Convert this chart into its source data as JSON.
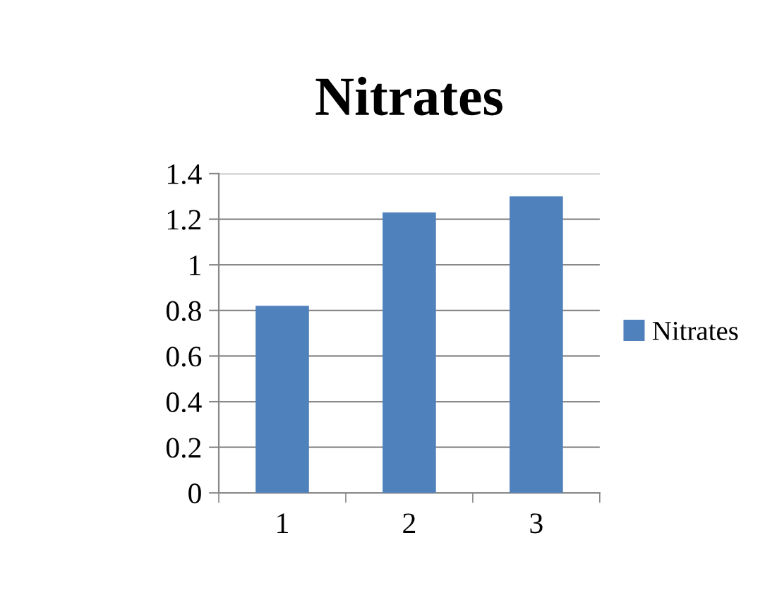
{
  "chart_data": {
    "type": "bar",
    "title": "Nitrates",
    "categories": [
      "1",
      "2",
      "3"
    ],
    "series": [
      {
        "name": "Nitrates",
        "color": "#4f81bd",
        "values": [
          0.82,
          1.23,
          1.3
        ]
      }
    ],
    "ylim": [
      0,
      1.4
    ],
    "yticks": [
      {
        "value": 0,
        "label": "0"
      },
      0.2,
      0.4,
      0.6,
      0.8,
      {
        "value": 1,
        "label": "1"
      },
      1.2,
      1.4
    ],
    "grid": "y",
    "legend": "right"
  }
}
